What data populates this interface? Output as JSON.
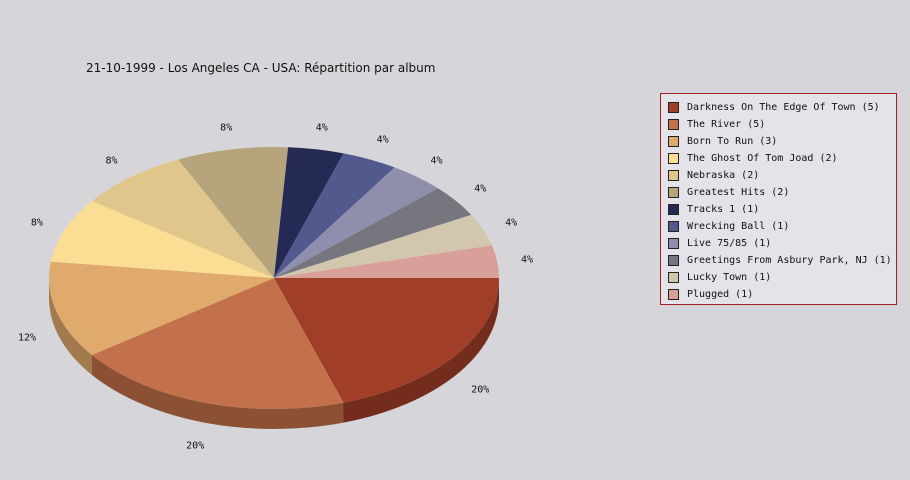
{
  "chart_data": {
    "type": "pie",
    "title": "21-10-1999 - Los Angeles CA - USA:  Répartition par album",
    "categories": [
      "Darkness On The Edge Of Town (5)",
      "The River (5)",
      "Born To Run (3)",
      "The Ghost Of Tom Joad (2)",
      "Nebraska (2)",
      "Greatest Hits (2)",
      "Tracks 1 (1)",
      "Wrecking Ball (1)",
      "Live 75/85 (1)",
      "Greetings From Asbury Park, NJ (1)",
      "Lucky Town (1)",
      "Plugged (1)"
    ],
    "values": [
      5,
      5,
      3,
      2,
      2,
      2,
      1,
      1,
      1,
      1,
      1,
      1
    ],
    "labels": [
      "20%",
      "20%",
      "12%",
      "8%",
      "8%",
      "8%",
      "4%",
      "4%",
      "4%",
      "4%",
      "4%",
      "4%"
    ],
    "colors": [
      "#a13e27",
      "#c2714a",
      "#dfaa6c",
      "#fbde93",
      "#dfc68a",
      "#b6a47c",
      "#252a55",
      "#525a8d",
      "#8f8fad",
      "#76767e",
      "#d2c6ad",
      "#d9a09a"
    ],
    "legend_position": "right",
    "style": "3d"
  }
}
